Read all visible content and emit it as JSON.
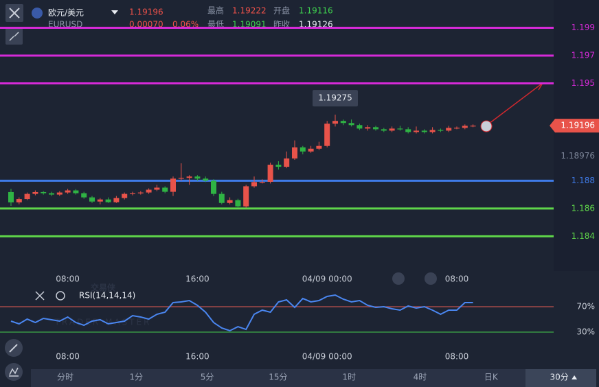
{
  "header": {
    "symbol": "欧元/美元",
    "code": "EURUSD",
    "price": "1.19196",
    "change": "0.00070",
    "change_pct": "0.06%",
    "stats": [
      [
        "最高",
        "1.19222"
      ],
      [
        "开盘",
        "1.19116"
      ],
      [
        "最低",
        "1.19091"
      ],
      [
        "昨收",
        "1.19126"
      ]
    ]
  },
  "watermark": {
    "name": "交易侠",
    "sub": "TRADER MASTER"
  },
  "tabs": {
    "items": [
      "分时",
      "1分",
      "5分",
      "15分",
      "1时",
      "4时",
      "日K",
      "30分"
    ],
    "active": 7
  },
  "chart_data": [
    {
      "type": "candlestick",
      "categories": [
        null,
        null,
        null,
        null,
        null,
        null,
        null,
        "08:00",
        null,
        null,
        null,
        null,
        null,
        null,
        null,
        null,
        null,
        null,
        null,
        null,
        null,
        null,
        null,
        "16:00",
        null,
        null,
        null,
        null,
        null,
        null,
        null,
        null,
        null,
        null,
        null,
        null,
        null,
        null,
        null,
        "04/09 00:00",
        null,
        null,
        null,
        null,
        null,
        null,
        null,
        null,
        null,
        null,
        null,
        null,
        null,
        null,
        null,
        "08:00",
        null,
        null
      ],
      "open": [
        1.18718,
        1.18644,
        1.18668,
        1.18705,
        1.18718,
        1.1871,
        1.187,
        1.18715,
        1.1873,
        1.1871,
        1.1868,
        1.1865,
        1.18665,
        1.18645,
        1.18675,
        1.18705,
        1.1871,
        1.18715,
        1.18735,
        1.1875,
        1.1872,
        1.18815,
        1.1882,
        1.1883,
        1.18815,
        1.188,
        1.18705,
        1.1864,
        1.1866,
        1.18615,
        1.1876,
        1.1879,
        1.18792,
        1.18915,
        1.189,
        1.1896,
        1.1904,
        1.1901,
        1.1903,
        1.1905,
        1.1921,
        1.1923,
        1.19215,
        1.192,
        1.19175,
        1.19185,
        1.1917,
        1.1916,
        1.19175,
        1.1917,
        1.1915,
        1.1916,
        1.1915,
        1.19165,
        1.1916,
        1.1918,
        1.1918,
        1.19195
      ],
      "close": [
        1.18644,
        1.18668,
        1.18705,
        1.18718,
        1.1871,
        1.187,
        1.18715,
        1.1873,
        1.1871,
        1.1868,
        1.1865,
        1.18665,
        1.18645,
        1.18675,
        1.18705,
        1.1871,
        1.18715,
        1.18735,
        1.1875,
        1.1872,
        1.18815,
        1.1882,
        1.1883,
        1.18815,
        1.188,
        1.18705,
        1.1864,
        1.1866,
        1.18615,
        1.1876,
        1.1879,
        1.18791,
        1.18915,
        1.189,
        1.1896,
        1.1904,
        1.1901,
        1.1903,
        1.1905,
        1.1921,
        1.1923,
        1.19215,
        1.192,
        1.19175,
        1.19185,
        1.1917,
        1.1916,
        1.19175,
        1.1917,
        1.1915,
        1.1916,
        1.1915,
        1.19165,
        1.1916,
        1.1918,
        1.19181,
        1.19195,
        1.19196
      ],
      "high": [
        1.18742,
        1.1868,
        1.18715,
        1.1873,
        1.18725,
        1.1872,
        1.18725,
        1.18742,
        1.1874,
        1.1872,
        1.1869,
        1.18675,
        1.1868,
        1.1869,
        1.18715,
        1.1872,
        1.18725,
        1.18745,
        1.1877,
        1.1876,
        1.1883,
        1.18925,
        1.1884,
        1.1884,
        1.1883,
        1.1881,
        1.1872,
        1.1868,
        1.1867,
        1.1877,
        1.1883,
        1.1881,
        1.1893,
        1.1894,
        1.1901,
        1.1909,
        1.1905,
        1.1905,
        1.1908,
        1.1923,
        1.19275,
        1.1924,
        1.1924,
        1.1921,
        1.192,
        1.19195,
        1.1918,
        1.1919,
        1.19195,
        1.19185,
        1.1919,
        1.1917,
        1.19185,
        1.19175,
        1.19195,
        1.1919,
        1.19205,
        1.19205
      ],
      "low": [
        1.18619,
        1.1863,
        1.1866,
        1.18695,
        1.187,
        1.1869,
        1.1869,
        1.18705,
        1.187,
        1.1867,
        1.1864,
        1.1863,
        1.1864,
        1.1864,
        1.18665,
        1.18695,
        1.187,
        1.18705,
        1.18725,
        1.1871,
        1.1869,
        1.188,
        1.1877,
        1.188,
        1.1879,
        1.1869,
        1.1863,
        1.1863,
        1.18605,
        1.18605,
        1.1875,
        1.1878,
        1.1878,
        1.1888,
        1.1889,
        1.1895,
        1.1899,
        1.19,
        1.1902,
        1.1904,
        1.1919,
        1.192,
        1.1919,
        1.19165,
        1.1916,
        1.1916,
        1.1915,
        1.1915,
        1.1916,
        1.1914,
        1.1914,
        1.1914,
        1.1914,
        1.1915,
        1.1915,
        1.1917,
        1.1917,
        1.19185
      ],
      "up_color": "#e8534a",
      "down_color": "#2fb344",
      "ylim": [
        1.1815,
        1.201
      ],
      "yticks": [
        1.18976
      ],
      "levels": [
        {
          "value": 1.199,
          "color": "#d62ad8"
        },
        {
          "value": 1.197,
          "color": "#d62ad8"
        },
        {
          "value": 1.195,
          "color": "#d62ad8"
        },
        {
          "value": 1.188,
          "color": "#3f7be8"
        },
        {
          "value": 1.186,
          "color": "#5fd64a"
        },
        {
          "value": 1.184,
          "color": "#5fd64a"
        }
      ],
      "last_price": 1.19196,
      "max_label": 1.19275
    },
    {
      "type": "line",
      "title": "RSI(14,14,14)",
      "color": "#4a86f0",
      "values": [
        47.3,
        43.0,
        50.5,
        45.1,
        51.6,
        49.5,
        47.3,
        53.8,
        45.1,
        40.8,
        47.3,
        49.5,
        43.0,
        45.1,
        47.3,
        55.9,
        53.8,
        50.5,
        58.1,
        61.4,
        76.5,
        77.6,
        79.7,
        72.2,
        61.4,
        45.1,
        36.5,
        32.2,
        38.6,
        34.3,
        58.1,
        64.6,
        61.4,
        77.6,
        80.8,
        68.9,
        83.0,
        77.6,
        79.7,
        86.2,
        88.4,
        81.9,
        77.6,
        79.7,
        72.2,
        68.9,
        70.0,
        66.8,
        64.6,
        71.1,
        67.8,
        70.0,
        64.6,
        58.1,
        64.6,
        64.6,
        76.5,
        76.5
      ],
      "ylim": [
        0,
        100
      ],
      "yticks": [
        {
          "value": 70,
          "label": "70%"
        },
        {
          "value": 30,
          "label": "30%"
        }
      ],
      "tick_colors": [
        "#c0504d",
        "#3fae49"
      ]
    }
  ]
}
